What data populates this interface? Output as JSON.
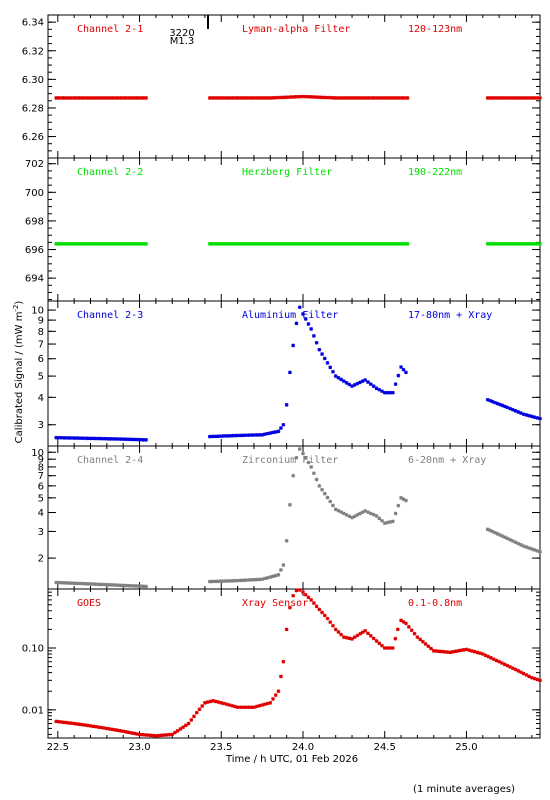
{
  "chart_data": [
    {
      "type": "scatter",
      "panel": "Channel 2-1",
      "labels": [
        "Channel 2-1",
        "Lyman-alpha Filter",
        "120-123nm"
      ],
      "color": "#e00000",
      "scale": "linear",
      "ylim": [
        6.245,
        6.345
      ],
      "yticks": [
        6.26,
        6.28,
        6.3,
        6.32,
        6.34
      ],
      "ytick_labels": [
        "6.26",
        "6.28",
        "6.30",
        "6.32",
        "6.34"
      ],
      "annotation": [
        "3220",
        "M1.3"
      ],
      "series": [
        {
          "x": [
            22.49,
            22.55,
            22.65,
            22.75,
            22.85,
            22.95,
            23.04
          ],
          "y": [
            6.287,
            6.287,
            6.287,
            6.287,
            6.287,
            6.287,
            6.287
          ]
        },
        {
          "x": [
            23.43,
            23.6,
            23.8,
            24.0,
            24.2,
            24.4,
            24.64
          ],
          "y": [
            6.287,
            6.287,
            6.287,
            6.288,
            6.287,
            6.287,
            6.287
          ]
        },
        {
          "x": [
            25.13,
            25.25,
            25.35,
            25.45
          ],
          "y": [
            6.287,
            6.287,
            6.287,
            6.287
          ]
        }
      ]
    },
    {
      "type": "scatter",
      "panel": "Channel 2-2",
      "labels": [
        "Channel 2-2",
        "Herzberg Filter",
        "190-222nm"
      ],
      "color": "#00e000",
      "scale": "linear",
      "ylim": [
        692.4,
        702.4
      ],
      "yticks": [
        694,
        696,
        698,
        700,
        702
      ],
      "ytick_labels": [
        "694",
        "696",
        "698",
        "700",
        "702"
      ],
      "series": [
        {
          "x": [
            22.49,
            22.6,
            22.8,
            23.04
          ],
          "y": [
            696.4,
            696.4,
            696.4,
            696.4
          ]
        },
        {
          "x": [
            23.43,
            23.8,
            24.2,
            24.64
          ],
          "y": [
            696.4,
            696.4,
            696.4,
            696.4
          ]
        },
        {
          "x": [
            25.13,
            25.3,
            25.45
          ],
          "y": [
            696.4,
            696.4,
            696.4
          ]
        }
      ]
    },
    {
      "type": "scatter",
      "panel": "Channel 2-3",
      "labels": [
        "Channel 2-3",
        "Aluminium Filter",
        "17-80nm + Xray"
      ],
      "color": "#0000e0",
      "scale": "log",
      "ylim": [
        2.4,
        11.0
      ],
      "yticks": [
        3,
        4,
        5,
        6,
        7,
        8,
        9,
        10
      ],
      "ytick_labels": [
        "3",
        "4",
        "5",
        "6",
        "7",
        "8",
        "9",
        "10"
      ],
      "series": [
        {
          "x": [
            22.49,
            22.7,
            22.9,
            23.04
          ],
          "y": [
            2.62,
            2.6,
            2.58,
            2.56
          ]
        },
        {
          "x": [
            23.43,
            23.6,
            23.75,
            23.85,
            23.88,
            23.9,
            23.92,
            23.94,
            23.96,
            23.98,
            24.0,
            24.05,
            24.1,
            24.2,
            24.3,
            24.38,
            24.45,
            24.5,
            24.55,
            24.6,
            24.63
          ],
          "y": [
            2.65,
            2.68,
            2.7,
            2.8,
            3.0,
            3.7,
            5.2,
            6.9,
            8.7,
            10.3,
            9.6,
            8.2,
            6.6,
            5.0,
            4.5,
            4.8,
            4.4,
            4.2,
            4.2,
            5.5,
            5.2
          ]
        },
        {
          "x": [
            25.13,
            25.25,
            25.35,
            25.45
          ],
          "y": [
            3.9,
            3.6,
            3.35,
            3.2
          ]
        }
      ]
    },
    {
      "type": "scatter",
      "panel": "Channel 2-4",
      "labels": [
        "Channel 2-4",
        "Zirconium Filter",
        "6-20nm + Xray"
      ],
      "color": "#808080",
      "scale": "log",
      "ylim": [
        1.25,
        11.0
      ],
      "yticks": [
        2,
        3,
        4,
        5,
        6,
        7,
        8,
        9,
        10
      ],
      "ytick_labels": [
        "2",
        "3",
        "4",
        "5",
        "6",
        "7",
        "8",
        "9",
        "10"
      ],
      "series": [
        {
          "x": [
            22.49,
            22.7,
            22.9,
            23.04
          ],
          "y": [
            1.38,
            1.35,
            1.32,
            1.3
          ]
        },
        {
          "x": [
            23.43,
            23.6,
            23.75,
            23.85,
            23.88,
            23.9,
            23.92,
            23.94,
            23.96,
            23.98,
            24.0,
            24.05,
            24.1,
            24.2,
            24.3,
            24.38,
            24.45,
            24.5,
            24.55,
            24.6,
            24.63
          ],
          "y": [
            1.4,
            1.42,
            1.45,
            1.55,
            1.8,
            2.6,
            4.5,
            7.0,
            9.2,
            10.5,
            9.8,
            8.0,
            6.0,
            4.2,
            3.7,
            4.1,
            3.8,
            3.4,
            3.5,
            5.0,
            4.8
          ]
        },
        {
          "x": [
            25.13,
            25.25,
            25.35,
            25.45
          ],
          "y": [
            3.1,
            2.7,
            2.4,
            2.2
          ]
        }
      ]
    },
    {
      "type": "scatter",
      "panel": "GOES",
      "labels": [
        "GOES",
        "Xray Sensor",
        "0.1-0.8nm"
      ],
      "color": "#e00000",
      "scale": "log",
      "ylim": [
        0.0035,
        0.9
      ],
      "yticks": [
        0.01,
        0.1
      ],
      "ytick_labels": [
        "0.01",
        "0.10"
      ],
      "series": [
        {
          "x": [
            22.49,
            22.6,
            22.7,
            22.8,
            22.9,
            23.0,
            23.1,
            23.2,
            23.3,
            23.35,
            23.4,
            23.45,
            23.5,
            23.6,
            23.7,
            23.8,
            23.85,
            23.88,
            23.9,
            23.92,
            23.94,
            23.96,
            23.98,
            24.0,
            24.05,
            24.1,
            24.15,
            24.2,
            24.25,
            24.3,
            24.35,
            24.38,
            24.45,
            24.5,
            24.55,
            24.58,
            24.6,
            24.63,
            24.7,
            24.8,
            24.9,
            24.95,
            25.0,
            25.1,
            25.2,
            25.3,
            25.4,
            25.45
          ],
          "y": [
            0.0065,
            0.006,
            0.0055,
            0.005,
            0.0045,
            0.004,
            0.0038,
            0.004,
            0.006,
            0.009,
            0.013,
            0.014,
            0.013,
            0.011,
            0.011,
            0.013,
            0.02,
            0.06,
            0.2,
            0.45,
            0.7,
            0.85,
            0.88,
            0.8,
            0.6,
            0.42,
            0.3,
            0.2,
            0.15,
            0.14,
            0.17,
            0.19,
            0.13,
            0.1,
            0.1,
            0.2,
            0.28,
            0.25,
            0.15,
            0.09,
            0.085,
            0.09,
            0.095,
            0.08,
            0.06,
            0.045,
            0.033,
            0.03
          ]
        }
      ]
    }
  ],
  "x_axis": {
    "xlim": [
      22.44,
      25.45
    ],
    "ticks": [
      22.5,
      23.0,
      23.5,
      24.0,
      24.5,
      25.0
    ],
    "tick_labels": [
      "22.5",
      "23.0",
      "23.5",
      "24.0",
      "24.5",
      "25.0"
    ],
    "label": "Time / h UTC, 01 Feb 2026"
  },
  "y_axis_label": "Calibrated Signal / (mW m-2)",
  "footnote": "(1 minute averages)"
}
